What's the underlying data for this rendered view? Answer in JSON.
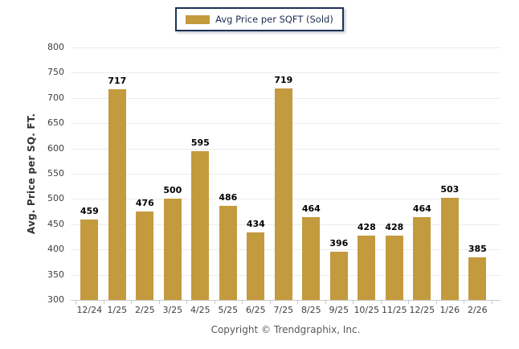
{
  "legend": {
    "label": "Avg Price per SQFT (Sold)"
  },
  "footer": {
    "copyright": "Copyright © Trendgraphix, Inc."
  },
  "colors": {
    "bar": "#c49a3e",
    "legend_border": "#1e3356",
    "grid": "#ececec",
    "axis_line": "#c9c9c9",
    "tick_text": "#404040",
    "value_text": "#000000",
    "copyright_text": "#58585a"
  },
  "chart_data": {
    "type": "bar",
    "title": "",
    "series_name": "Avg Price per SQFT (Sold)",
    "categories": [
      "12/24",
      "1/25",
      "2/25",
      "3/25",
      "4/25",
      "5/25",
      "6/25",
      "7/25",
      "8/25",
      "9/25",
      "10/25",
      "11/25",
      "12/25",
      "1/26",
      "2/26"
    ],
    "values": [
      459,
      717,
      476,
      500,
      595,
      486,
      434,
      719,
      464,
      396,
      428,
      428,
      464,
      503,
      385
    ],
    "xlabel": "",
    "ylabel": "Avg. Price per SQ. FT.",
    "ylim": [
      300,
      800
    ],
    "ytick_step": 50,
    "grid": true,
    "legend_position": "top-center",
    "data_labels": true
  }
}
